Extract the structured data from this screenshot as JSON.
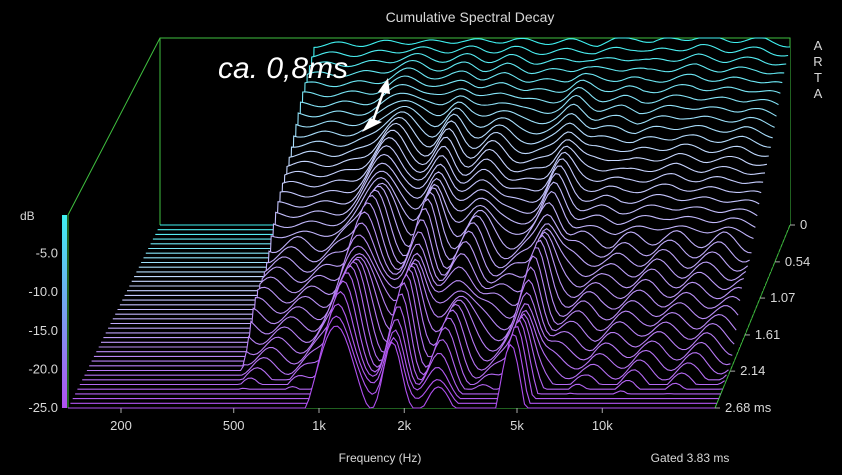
{
  "chart_data": {
    "type": "waterfall-3d",
    "title": "Cumulative Spectral Decay",
    "brand_letters": [
      "A",
      "R",
      "T",
      "A"
    ],
    "xlabel": "Frequency (Hz)",
    "x_ticks": [
      "200",
      "500",
      "1k",
      "2k",
      "5k",
      "10k"
    ],
    "x_tick_values": [
      200,
      500,
      1000,
      2000,
      5000,
      10000
    ],
    "x_range": [
      130,
      25000
    ],
    "x_scale": "log",
    "ylabel": "dB",
    "y_ticks": [
      "-5.0",
      "-10.0",
      "-15.0",
      "-20.0",
      "-25.0"
    ],
    "y_tick_values": [
      -5,
      -10,
      -15,
      -20,
      -25
    ],
    "y_range": [
      -25,
      0
    ],
    "z_label": "ms",
    "z_ticks": [
      "0",
      "0.54",
      "1.07",
      "1.61",
      "2.14",
      "2.68 ms"
    ],
    "z_tick_values": [
      0,
      0.54,
      1.07,
      1.61,
      2.14,
      2.68
    ],
    "gated_text": "Gated 3.83 ms",
    "annotation": "ca. 0,8ms",
    "slices": 40,
    "front_response": {
      "freq": [
        200,
        300,
        400,
        500,
        700,
        1000,
        1300,
        1600,
        2000,
        2500,
        3000,
        4000,
        5000,
        6000,
        7000,
        8000,
        10000,
        12000,
        15000,
        20000,
        25000
      ],
      "db": [
        -1.5,
        -1.2,
        -1.0,
        -0.9,
        -0.8,
        -0.5,
        -0.6,
        -0.3,
        -0.5,
        -0.2,
        -0.6,
        -0.4,
        -0.8,
        -0.2,
        0.0,
        -0.5,
        -0.1,
        0.2,
        -0.3,
        -0.2,
        -1.0
      ]
    },
    "colors": {
      "top": "#3ff0f0",
      "mid": "#c7d8ff",
      "bottom": "#b050f0",
      "axis": "#3fbf3f",
      "text": "#d8d8d8"
    }
  }
}
